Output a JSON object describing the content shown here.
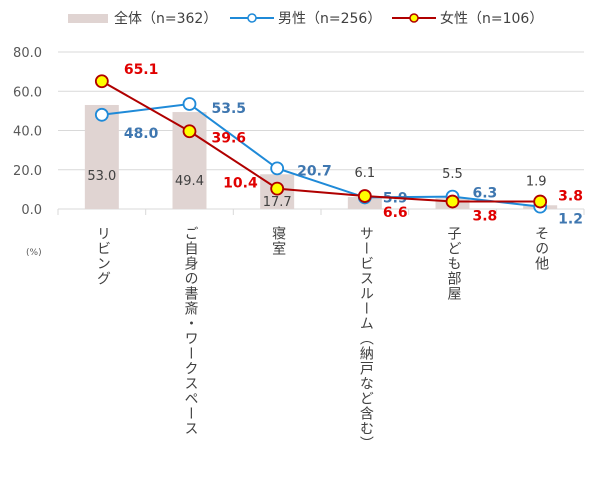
{
  "chart_data": {
    "type": "bar+line",
    "categories": [
      "リビング",
      "ご自身の書斎・ワークスペース",
      "寝室",
      "サービスルーム（納戸など含む）",
      "子ども部屋",
      "その他"
    ],
    "series": [
      {
        "name": "全体（n=362）",
        "type": "bar",
        "values": [
          53.0,
          49.4,
          17.7,
          6.1,
          5.5,
          1.9
        ],
        "color": "#e0d4d2",
        "label_color": "#404040"
      },
      {
        "name": "男性（n=256）",
        "type": "line",
        "values": [
          48.0,
          53.5,
          20.7,
          5.9,
          6.3,
          1.2
        ],
        "color": "#1f8ad8",
        "label_color": "#3f77b0",
        "marker_fill": "#ffffff"
      },
      {
        "name": "女性（n=106）",
        "type": "line",
        "values": [
          65.1,
          39.6,
          10.4,
          6.6,
          3.8,
          3.8
        ],
        "color": "#b00000",
        "label_color": "#e00000",
        "marker_fill": "#ffff00"
      }
    ],
    "ylim": [
      0,
      80
    ],
    "yticks": [
      "0.0",
      "20.0",
      "40.0",
      "60.0",
      "80.0"
    ],
    "ylabel": "(%)",
    "grid": true,
    "legend": "top"
  }
}
